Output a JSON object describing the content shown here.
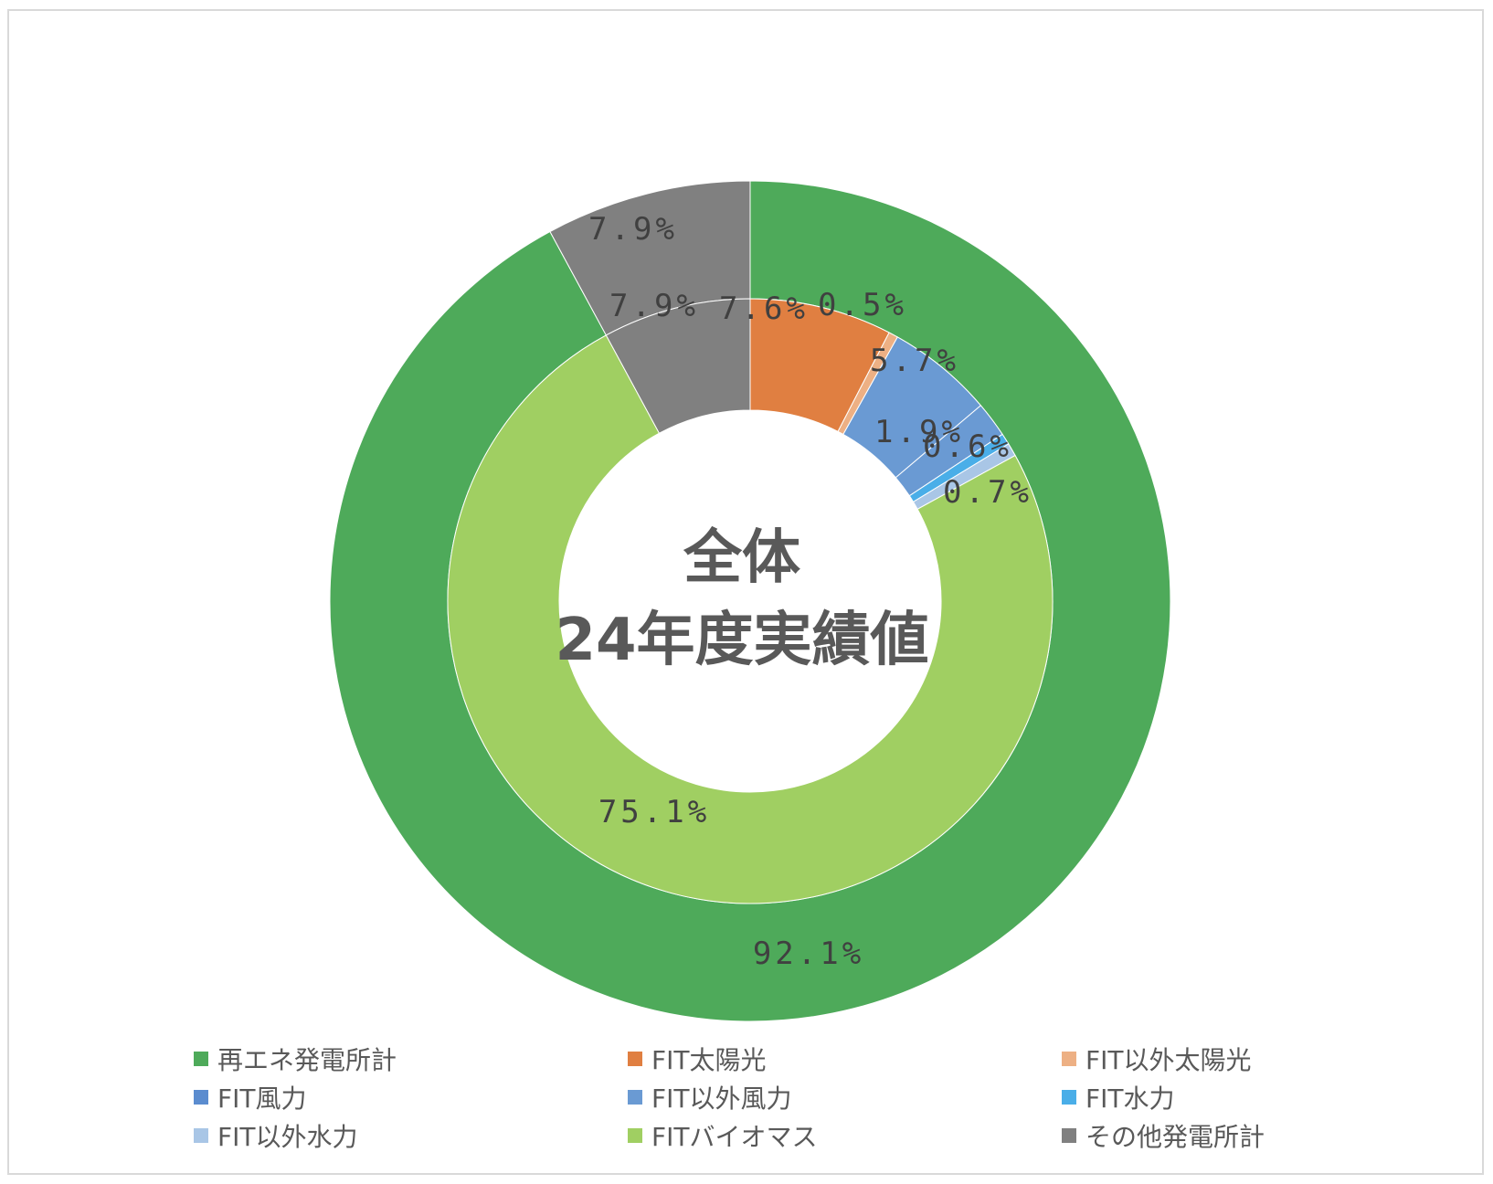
{
  "chart_data": {
    "type": "donut",
    "center_title": [
      "全体",
      "24年度実績値"
    ],
    "outer_ring": {
      "slices": [
        {
          "name": "再エネ発電所計",
          "value": 92.1,
          "label": "92.1%",
          "color": "#4EAA5A"
        },
        {
          "name": "その他発電所計",
          "value": 7.9,
          "label": "7.9%",
          "color": "#808080"
        }
      ]
    },
    "inner_ring": {
      "slices": [
        {
          "name": "FIT太陽光",
          "value": 7.6,
          "label": "7.6%",
          "color": "#E07F41"
        },
        {
          "name": "FIT以外太陽光",
          "value": 0.5,
          "label": "0.5%",
          "color": "#EDB084"
        },
        {
          "name": "FIT風力",
          "value": 5.7,
          "label": "5.7%",
          "color": "#6A9AD3"
        },
        {
          "name": "FIT以外風力",
          "value": 1.9,
          "label": "1.9%",
          "color": "#6A9AD3"
        },
        {
          "name": "FIT水力",
          "value": 0.6,
          "label": "0.6%",
          "color": "#4AAEE8"
        },
        {
          "name": "FIT以外水力",
          "value": 0.7,
          "label": "0.7%",
          "color": "#A9C6E6"
        },
        {
          "name": "FITバイオマス",
          "value": 75.1,
          "label": "75.1%",
          "color": "#A0CF62"
        },
        {
          "name": "その他発電所計",
          "value": 7.9,
          "label": "7.9%",
          "color": "#808080"
        }
      ]
    },
    "legend": [
      {
        "label": "再エネ発電所計",
        "color": "#4EAA5A"
      },
      {
        "label": "FIT太陽光",
        "color": "#E07F41"
      },
      {
        "label": "FIT以外太陽光",
        "color": "#EDB084"
      },
      {
        "label": "FIT風力",
        "color": "#5B8CCF"
      },
      {
        "label": "FIT以外風力",
        "color": "#6A9AD3"
      },
      {
        "label": "FIT水力",
        "color": "#4AAEE8"
      },
      {
        "label": "FIT以外水力",
        "color": "#A9C6E6"
      },
      {
        "label": "FITバイオマス",
        "color": "#A0CF62"
      },
      {
        "label": "その他発電所計",
        "color": "#808080"
      }
    ],
    "legend_position": "bottom"
  }
}
